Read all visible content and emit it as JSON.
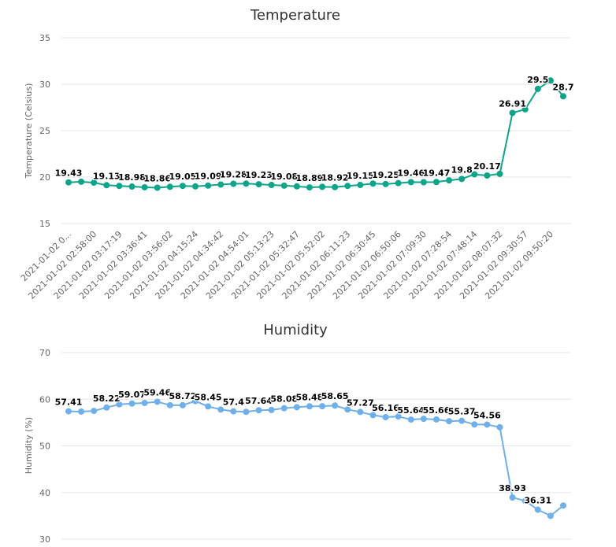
{
  "colors": {
    "temperature": "#0da58a",
    "humidity": "#6fb0eb",
    "grid": "#e6e6e6"
  },
  "chart_data": [
    {
      "type": "line",
      "title": "Temperature",
      "xlabel": "",
      "ylabel": "Temperature (Celsius)",
      "ylim": [
        15,
        35
      ],
      "yticks": [
        15,
        20,
        25,
        30,
        35
      ],
      "grid": true,
      "x_tick_labels": [
        "2021-01-02 0...",
        "2021-01-02 02:58:00",
        "2021-01-02 03:17:19",
        "2021-01-02 03:36:41",
        "2021-01-02 03:56:02",
        "2021-01-02 04:15:24",
        "2021-01-02 04:34:42",
        "2021-01-02 04:54:01",
        "2021-01-02 05:13:23",
        "2021-01-02 05:32:47",
        "2021-01-02 05:52:02",
        "2021-01-02 06:11:23",
        "2021-01-02 06:30:45",
        "2021-01-02 06:50:06",
        "2021-01-02 07:09:30",
        "2021-01-02 07:28:54",
        "2021-01-02 07:48:14",
        "2021-01-02 08:07:32",
        "2021-01-02 09:30:57",
        "2021-01-02 09:50:20"
      ],
      "series": [
        {
          "values": [
            19.43,
            19.5,
            19.4,
            19.13,
            19.05,
            18.98,
            18.9,
            18.86,
            18.96,
            19.05,
            19.0,
            19.09,
            19.2,
            19.28,
            19.3,
            19.23,
            19.15,
            19.08,
            19.0,
            18.89,
            18.95,
            18.92,
            19.05,
            19.15,
            19.3,
            19.25,
            19.35,
            19.46,
            19.45,
            19.47,
            19.65,
            19.8,
            20.3,
            20.17,
            20.35,
            26.91,
            27.3,
            29.5,
            30.4,
            28.7
          ],
          "labels": [
            "19.43",
            "",
            "",
            "19.13",
            "",
            "18.98",
            "",
            "18.86",
            "",
            "19.05",
            "",
            "19.09",
            "",
            "19.28",
            "",
            "19.23",
            "",
            "19.08",
            "",
            "18.89",
            "",
            "18.92",
            "",
            "19.15",
            "",
            "19.25",
            "",
            "19.46",
            "",
            "19.47",
            "",
            "19.8",
            "",
            "20.17",
            "",
            "26.91",
            "",
            "29.5",
            "",
            "28.7"
          ]
        }
      ]
    },
    {
      "type": "line",
      "title": "Humidity",
      "xlabel": "",
      "ylabel": "Humidity (%)",
      "ylim": [
        30,
        70
      ],
      "yticks": [
        30,
        40,
        50,
        60,
        70
      ],
      "grid": true,
      "series": [
        {
          "values": [
            57.41,
            57.35,
            57.5,
            58.22,
            58.9,
            59.07,
            59.2,
            59.46,
            58.72,
            58.72,
            59.6,
            58.45,
            57.8,
            57.4,
            57.3,
            57.64,
            57.7,
            58.08,
            58.3,
            58.48,
            58.5,
            58.65,
            57.8,
            57.27,
            56.6,
            56.16,
            56.3,
            55.64,
            55.8,
            55.66,
            55.3,
            55.37,
            54.6,
            54.56,
            54.0,
            38.93,
            38.2,
            36.31,
            35.0,
            37.2
          ],
          "labels": [
            "57.41",
            "",
            "",
            "58.22",
            "",
            "59.07",
            "",
            "59.46",
            "",
            "58.72",
            "",
            "58.45",
            "",
            "57.4",
            "",
            "57.64",
            "",
            "58.08",
            "",
            "58.48",
            "",
            "58.65",
            "",
            "57.27",
            "",
            "56.16",
            "",
            "55.64",
            "",
            "55.66",
            "",
            "55.37",
            "",
            "54.56",
            "",
            "38.93",
            "",
            "36.31",
            "",
            ""
          ]
        }
      ]
    }
  ]
}
